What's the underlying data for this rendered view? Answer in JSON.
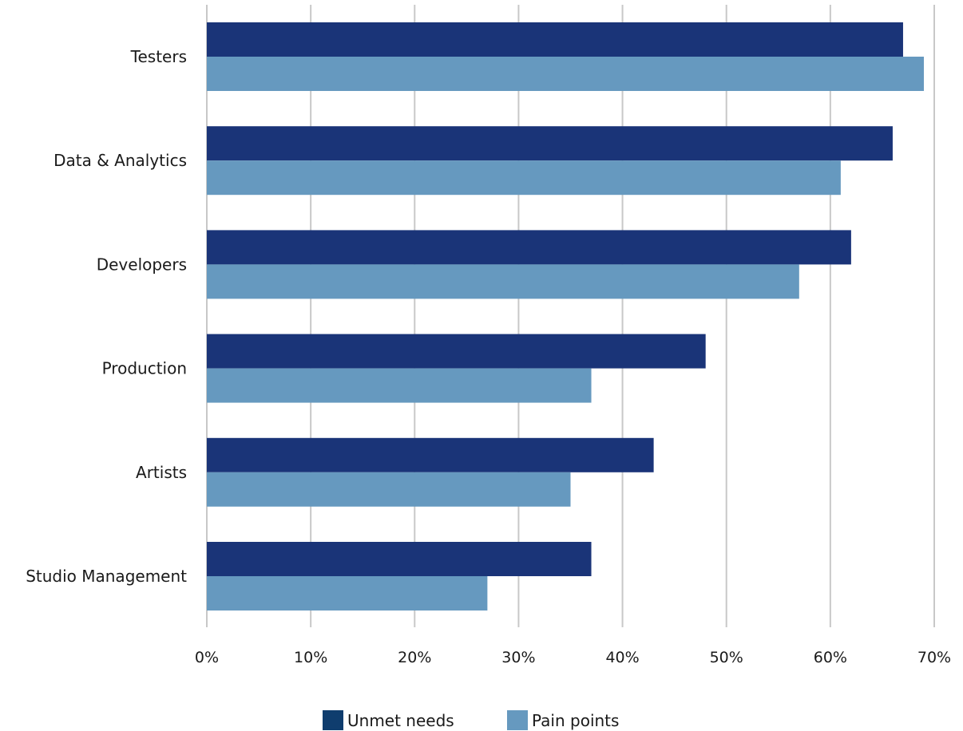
{
  "chart_data": {
    "type": "bar",
    "orientation": "horizontal",
    "categories": [
      "Testers",
      "Data & Analytics",
      "Developers",
      "Production",
      "Artists",
      "Studio Management"
    ],
    "series": [
      {
        "name": "Unmet needs",
        "color": "#1a3478",
        "values": [
          67,
          66,
          62,
          48,
          43,
          37
        ]
      },
      {
        "name": "Pain points",
        "color": "#6699bf",
        "values": [
          69,
          61,
          57,
          37,
          35,
          27
        ]
      }
    ],
    "xlim": [
      0,
      70
    ],
    "xticks": [
      0,
      10,
      20,
      30,
      40,
      50,
      60,
      70
    ],
    "xtick_labels": [
      "0%",
      "10%",
      "20%",
      "30%",
      "40%",
      "50%",
      "60%",
      "70%"
    ],
    "grid": "vertical",
    "legend_position": "bottom",
    "legend_colors": [
      "#0f3d6e",
      "#6699bf"
    ],
    "title": "",
    "xlabel": "",
    "ylabel": ""
  }
}
